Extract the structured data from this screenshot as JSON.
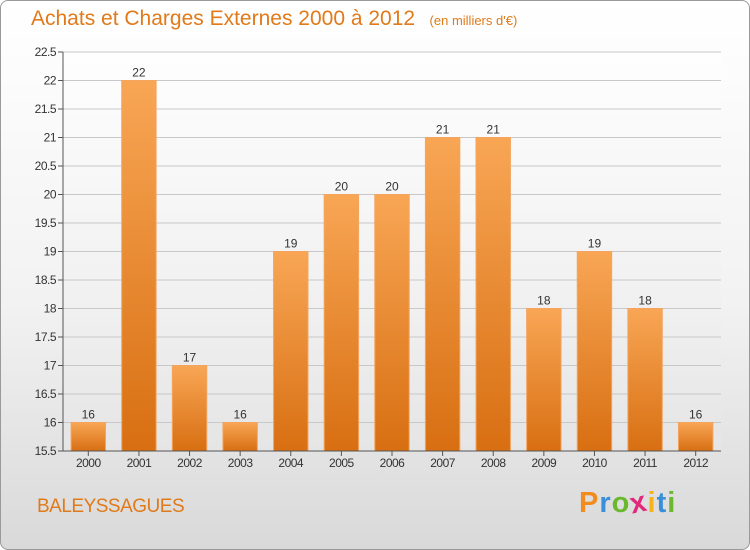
{
  "header": {
    "title": "Achats et Charges Externes 2000 à 2012",
    "subtitle": "(en milliers d'€)"
  },
  "commune": "BALEYSSAGUES",
  "brand": {
    "letters": [
      "P",
      "r",
      "o",
      "x",
      "i",
      "t",
      "i"
    ],
    "colors": [
      "#f28c1e",
      "#3a8fd9",
      "#6ab82e",
      "#e2287a",
      "#f6b21b",
      "#3a8fd9",
      "#6ab82e"
    ]
  },
  "chart_data": {
    "type": "bar",
    "categories": [
      "2000",
      "2001",
      "2002",
      "2003",
      "2004",
      "2005",
      "2006",
      "2007",
      "2008",
      "2009",
      "2010",
      "2011",
      "2012"
    ],
    "values": [
      16,
      22,
      17,
      16,
      19,
      20,
      20,
      21,
      21,
      18,
      19,
      18,
      16
    ],
    "data_labels": [
      "16",
      "22",
      "17",
      "16",
      "19",
      "20",
      "20",
      "21",
      "21",
      "18",
      "19",
      "18",
      "16"
    ],
    "title": "Achats et Charges Externes 2000 à 2012",
    "subtitle": "(en milliers d'€)",
    "ylim": [
      15.5,
      22.5
    ],
    "yticks": [
      15.5,
      16,
      16.5,
      17,
      17.5,
      18,
      18.5,
      19,
      19.5,
      20,
      20.5,
      21,
      21.5,
      22,
      22.5
    ],
    "ytick_labels": [
      "15.5",
      "16",
      "16.5",
      "17",
      "17.5",
      "18",
      "18.5",
      "19",
      "19.5",
      "20",
      "20.5",
      "21",
      "21.5",
      "22",
      "22.5"
    ],
    "grid": true,
    "bar_color_top": "#f8a655",
    "bar_color_bottom": "#d86f12"
  }
}
